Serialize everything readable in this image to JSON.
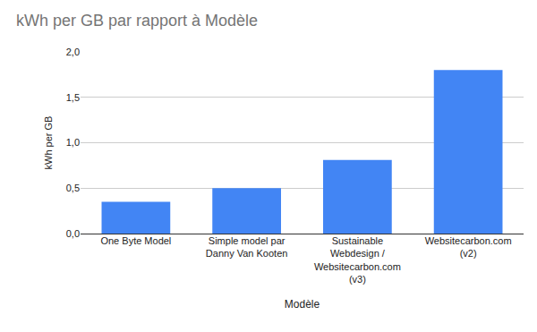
{
  "chart_data": {
    "type": "bar",
    "title": "kWh per GB par rapport à Modèle",
    "x_label": "Modèle",
    "y_label": "kWh per GB",
    "categories": [
      "One Byte Model",
      "Simple model par Danny Van Kooten",
      "Sustainable Webdesign / Websitecarbon.com (v3)",
      "Websitecarbon.com (v2)"
    ],
    "values": [
      0.35,
      0.5,
      0.81,
      1.8
    ],
    "color": "#4285f4",
    "ylim": [
      0,
      2
    ],
    "yticks": [
      {
        "value": 0,
        "label": "0,0"
      },
      {
        "value": 0.5,
        "label": "0,5"
      },
      {
        "value": 1,
        "label": "1,0"
      },
      {
        "value": 1.5,
        "label": "1,5"
      },
      {
        "value": 2,
        "label": "2,0"
      }
    ],
    "grid": true
  }
}
